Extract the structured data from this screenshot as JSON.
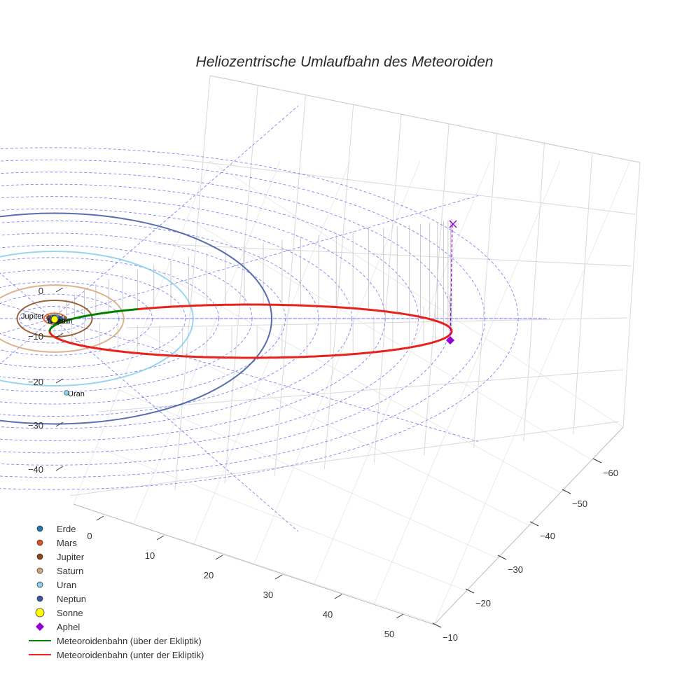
{
  "chart_data": {
    "type": "3d-line",
    "title": "Heliozentrische Umlaufbahn des Meteoroiden",
    "xlabel": "",
    "ylabel": "",
    "zlabel": "",
    "axes": {
      "x_ticks": [
        "0",
        "10",
        "20",
        "30",
        "40",
        "50"
      ],
      "y_ticks": [
        "−10",
        "−20",
        "−30",
        "−40",
        "−50",
        "−60"
      ],
      "z_ticks": [
        "0",
        "−10",
        "−20",
        "−30",
        "−40"
      ],
      "grid": true,
      "units": "AU"
    },
    "planets": [
      {
        "name": "Erde",
        "color": "#1f77b4",
        "orbit_radius": 1.0,
        "label": "Erde"
      },
      {
        "name": "Mars",
        "color": "#d9541a",
        "orbit_radius": 1.52,
        "label": "Mars"
      },
      {
        "name": "Jupiter",
        "color": "#8b4513",
        "orbit_radius": 5.2,
        "label": "Jupiter"
      },
      {
        "name": "Saturn",
        "color": "#d2a679",
        "orbit_radius": 9.58,
        "label": "Saturn"
      },
      {
        "name": "Uran",
        "color": "#87ceeb",
        "orbit_radius": 19.2,
        "label": "Uran"
      },
      {
        "name": "Neptun",
        "color": "#3b55a0",
        "orbit_radius": 30.1,
        "label": "Neptun"
      }
    ],
    "sun": {
      "name": "Sonne",
      "color": "#ffff00"
    },
    "aphel": {
      "name": "Aphel",
      "color": "#9400d3",
      "distance_au": 61
    },
    "series": [
      {
        "name": "Meteoroidenbahn (über der Ekliptik)",
        "color": "#008000"
      },
      {
        "name": "Meteoroidenbahn (unter der Ekliptik)",
        "color": "#e8211b"
      }
    ],
    "legend_position": "bottom-left",
    "legend": [
      {
        "label": "Erde",
        "symbol": "dot",
        "color": "#1f77b4"
      },
      {
        "label": "Mars",
        "symbol": "dot",
        "color": "#d9541a"
      },
      {
        "label": "Jupiter",
        "symbol": "dot",
        "color": "#8b4513"
      },
      {
        "label": "Saturn",
        "symbol": "dot",
        "color": "#d2a679"
      },
      {
        "label": "Uran",
        "symbol": "dot",
        "color": "#87ceeb"
      },
      {
        "label": "Neptun",
        "symbol": "dot",
        "color": "#3b55a0"
      },
      {
        "label": "Sonne",
        "symbol": "bigdot",
        "color": "#ffff00"
      },
      {
        "label": "Aphel",
        "symbol": "diamond",
        "color": "#9400d3"
      },
      {
        "label": "Meteoroidenbahn (über der Ekliptik)",
        "symbol": "line",
        "color": "#008000"
      },
      {
        "label": "Meteoroidenbahn (unter der Ekliptik)",
        "symbol": "line",
        "color": "#e8211b"
      }
    ]
  }
}
